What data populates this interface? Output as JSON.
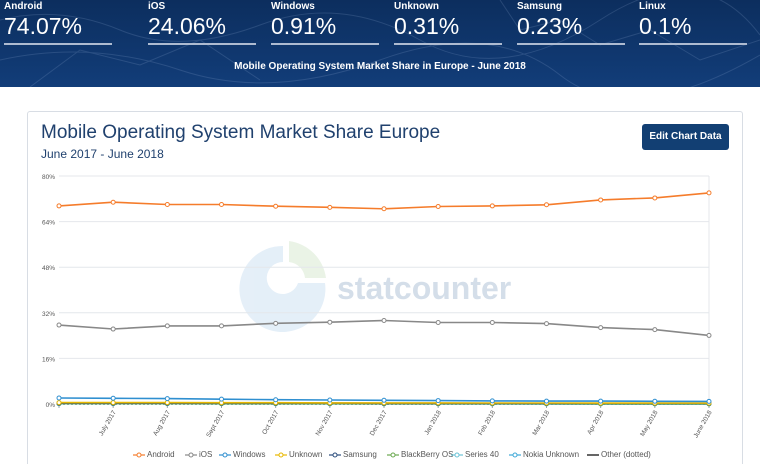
{
  "header": {
    "stats": [
      {
        "label": "Android",
        "value": "74.07%"
      },
      {
        "label": "iOS",
        "value": "24.06%"
      },
      {
        "label": "Windows",
        "value": "0.91%"
      },
      {
        "label": "Unknown",
        "value": "0.31%"
      },
      {
        "label": "Samsung",
        "value": "0.23%"
      },
      {
        "label": "Linux",
        "value": "0.1%"
      }
    ],
    "caption": "Mobile Operating System Market Share in Europe - June 2018"
  },
  "panel": {
    "title": "Mobile Operating System Market Share Europe",
    "subtitle": "June 2017 - June 2018",
    "edit_button": "Edit Chart Data",
    "watermark": "statcounter"
  },
  "chart_data": {
    "type": "line",
    "title": "Mobile Operating System Market Share Europe",
    "subtitle": "June 2017 - June 2018",
    "categories": [
      "",
      "July 2017",
      "Aug 2017",
      "Sept 2017",
      "Oct 2017",
      "Nov 2017",
      "Dec 2017",
      "Jan 2018",
      "Feb 2018",
      "Mar 2018",
      "Apr 2018",
      "May 2018",
      "June 2018"
    ],
    "yticks": [
      "0%",
      "16%",
      "32%",
      "48%",
      "64%",
      "80%"
    ],
    "ylim": [
      0,
      80
    ],
    "grid": true,
    "legend_position": "bottom",
    "series": [
      {
        "name": "Android",
        "color": "#f57c2b",
        "values": [
          69.5,
          70.8,
          70.0,
          70.0,
          69.4,
          69.0,
          68.5,
          69.3,
          69.5,
          69.9,
          71.6,
          72.3,
          74.07
        ]
      },
      {
        "name": "iOS",
        "color": "#888888",
        "values": [
          27.7,
          26.3,
          27.4,
          27.4,
          28.3,
          28.7,
          29.3,
          28.6,
          28.6,
          28.2,
          26.8,
          26.1,
          24.06
        ]
      },
      {
        "name": "Windows",
        "color": "#2f8fd0",
        "values": [
          2.1,
          2.0,
          1.9,
          1.7,
          1.5,
          1.4,
          1.3,
          1.2,
          1.1,
          1.0,
          1.0,
          0.95,
          0.91
        ]
      },
      {
        "name": "Unknown",
        "color": "#e8b800",
        "values": [
          0.5,
          0.5,
          0.5,
          0.45,
          0.45,
          0.4,
          0.4,
          0.4,
          0.35,
          0.35,
          0.3,
          0.3,
          0.31
        ]
      },
      {
        "name": "Samsung",
        "color": "#2a4c7d",
        "values": [
          0.3,
          0.3,
          0.3,
          0.3,
          0.3,
          0.3,
          0.25,
          0.25,
          0.25,
          0.25,
          0.25,
          0.24,
          0.23
        ]
      },
      {
        "name": "BlackBerry OS",
        "color": "#6aa84f",
        "values": [
          0.2,
          0.2,
          0.2,
          0.15,
          0.15,
          0.15,
          0.1,
          0.1,
          0.1,
          0.1,
          0.08,
          0.08,
          0.07
        ]
      },
      {
        "name": "Series 40",
        "color": "#6cc3d5",
        "values": [
          0.15,
          0.15,
          0.12,
          0.12,
          0.1,
          0.1,
          0.1,
          0.08,
          0.08,
          0.07,
          0.06,
          0.06,
          0.05
        ]
      },
      {
        "name": "Nokia Unknown",
        "color": "#3fa9d8",
        "values": [
          0.1,
          0.1,
          0.1,
          0.08,
          0.08,
          0.07,
          0.07,
          0.06,
          0.06,
          0.05,
          0.05,
          0.05,
          0.04
        ]
      },
      {
        "name": "Other (dotted)",
        "color": "#333333",
        "values": [
          0.05,
          0.05,
          0.05,
          0.05,
          0.05,
          0.05,
          0.05,
          0.05,
          0.05,
          0.05,
          0.05,
          0.05,
          0.05
        ]
      }
    ]
  }
}
